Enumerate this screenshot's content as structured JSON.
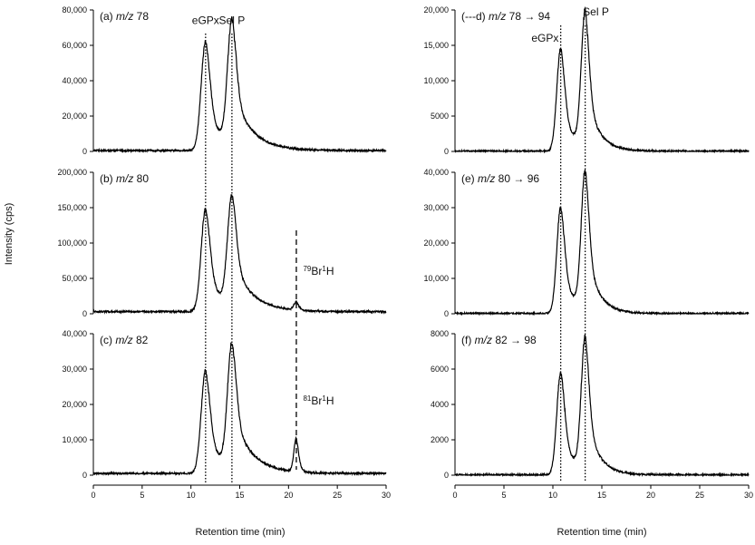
{
  "y_axis_title": "Intensity (cps)",
  "x_axis_title": "Retention time (min)",
  "chart_data": [
    {
      "type": "line",
      "id": "a",
      "panel_label": "(a) ",
      "panel_mz_label": "m/z",
      "panel_mz_value": " 78",
      "xlim": [
        0,
        30
      ],
      "ylim": [
        0,
        80000
      ],
      "xticks": [
        0,
        5,
        10,
        15,
        20,
        25,
        30
      ],
      "yticks": [
        "0",
        "20,000",
        "40,000",
        "60,000",
        "80,000"
      ],
      "ytick_values": [
        0,
        20000,
        40000,
        60000,
        80000
      ],
      "baseline": 500,
      "peaks": [
        {
          "center": 11.5,
          "height": 62000,
          "width": 0.45,
          "tail": 1.4
        },
        {
          "center": 14.2,
          "height": 70000,
          "width": 0.45,
          "tail": 1.9
        }
      ],
      "annotations": [
        {
          "text": "eGPx",
          "x": 11.5,
          "y": 72000
        },
        {
          "text": "Sel P",
          "x": 14.2,
          "y": 72000
        }
      ]
    },
    {
      "type": "line",
      "id": "b",
      "panel_label": "(b) ",
      "panel_mz_label": "m/z",
      "panel_mz_value": " 80",
      "xlim": [
        0,
        30
      ],
      "ylim": [
        0,
        200000
      ],
      "xticks": [
        0,
        5,
        10,
        15,
        20,
        25,
        30
      ],
      "yticks": [
        "0",
        "50,000",
        "100,000",
        "150,000",
        "200,000"
      ],
      "ytick_values": [
        0,
        50000,
        100000,
        150000,
        200000
      ],
      "baseline": 3000,
      "peaks": [
        {
          "center": 11.5,
          "height": 145000,
          "width": 0.45,
          "tail": 1.4
        },
        {
          "center": 14.2,
          "height": 155000,
          "width": 0.45,
          "tail": 1.9
        },
        {
          "center": 20.8,
          "height": 12000,
          "width": 0.25,
          "tail": 0.3
        }
      ],
      "annotations": [
        {
          "sup": "79",
          "main": "Br",
          "sup2": "1",
          "end": "H",
          "x": 21.5,
          "y": 55000
        }
      ]
    },
    {
      "type": "line",
      "id": "c",
      "panel_label": "(c) ",
      "panel_mz_label": "m/z",
      "panel_mz_value": " 82",
      "xlim": [
        0,
        30
      ],
      "ylim": [
        0,
        40000
      ],
      "xticks": [
        0,
        5,
        10,
        15,
        20,
        25,
        30
      ],
      "yticks": [
        "0",
        "10,000",
        "20,000",
        "30,000",
        "40,000"
      ],
      "ytick_values": [
        0,
        10000,
        20000,
        30000,
        40000
      ],
      "baseline": 500,
      "peaks": [
        {
          "center": 11.5,
          "height": 29000,
          "width": 0.45,
          "tail": 1.4
        },
        {
          "center": 14.2,
          "height": 35000,
          "width": 0.45,
          "tail": 1.9
        },
        {
          "center": 20.8,
          "height": 9500,
          "width": 0.25,
          "tail": 0.3
        }
      ],
      "annotations": [
        {
          "sup": "81",
          "main": "Br",
          "sup2": "1",
          "end": "H",
          "x": 21.5,
          "y": 20000
        }
      ]
    },
    {
      "type": "line",
      "id": "d",
      "panel_label": "(---d) ",
      "panel_mz_label": "m/z",
      "panel_mz_value": " 78 → 94",
      "xlim": [
        0,
        30
      ],
      "ylim": [
        0,
        20000
      ],
      "xticks": [
        0,
        5,
        10,
        15,
        20,
        25,
        30
      ],
      "yticks": [
        "0",
        "5000",
        "10,000",
        "15,000",
        "20,000"
      ],
      "ytick_values": [
        0,
        5000,
        10000,
        15000,
        20000
      ],
      "baseline": 40,
      "peaks": [
        {
          "center": 10.8,
          "height": 14500,
          "width": 0.4,
          "tail": 1.2
        },
        {
          "center": 13.3,
          "height": 19000,
          "width": 0.4,
          "tail": 1.2
        }
      ],
      "annotations": [
        {
          "text": "eGPx",
          "x": 9.2,
          "y": 15500
        },
        {
          "text": "Sel P",
          "x": 14.4,
          "y": 19200
        }
      ]
    },
    {
      "type": "line",
      "id": "e",
      "panel_label": "(e) ",
      "panel_mz_label": "m/z",
      "panel_mz_value": " 80 → 96",
      "xlim": [
        0,
        30
      ],
      "ylim": [
        0,
        40000
      ],
      "xticks": [
        0,
        5,
        10,
        15,
        20,
        25,
        30
      ],
      "yticks": [
        "0",
        "10,000",
        "20,000",
        "30,000",
        "40,000"
      ],
      "ytick_values": [
        0,
        10000,
        20000,
        30000,
        40000
      ],
      "baseline": 80,
      "peaks": [
        {
          "center": 10.8,
          "height": 30000,
          "width": 0.4,
          "tail": 1.2
        },
        {
          "center": 13.3,
          "height": 39000,
          "width": 0.4,
          "tail": 1.2
        }
      ],
      "annotations": []
    },
    {
      "type": "line",
      "id": "f",
      "panel_label": "(f) ",
      "panel_mz_label": "m/z",
      "panel_mz_value": " 82 → 98",
      "xlim": [
        0,
        30
      ],
      "ylim": [
        0,
        8000
      ],
      "xticks": [
        0,
        5,
        10,
        15,
        20,
        25,
        30
      ],
      "yticks": [
        "0",
        "2000",
        "4000",
        "6000",
        "8000"
      ],
      "ytick_values": [
        0,
        2000,
        4000,
        6000,
        8000
      ],
      "baseline": 20,
      "peaks": [
        {
          "center": 10.8,
          "height": 5800,
          "width": 0.4,
          "tail": 1.2
        },
        {
          "center": 13.3,
          "height": 7500,
          "width": 0.4,
          "tail": 1.2
        }
      ],
      "annotations": []
    }
  ],
  "guide_lines": {
    "left_dotted": [
      11.5,
      14.2
    ],
    "left_dashed": 20.8,
    "right_dotted": [
      10.8,
      13.3
    ]
  },
  "colors": {
    "line": "#000000",
    "background": "#ffffff"
  }
}
